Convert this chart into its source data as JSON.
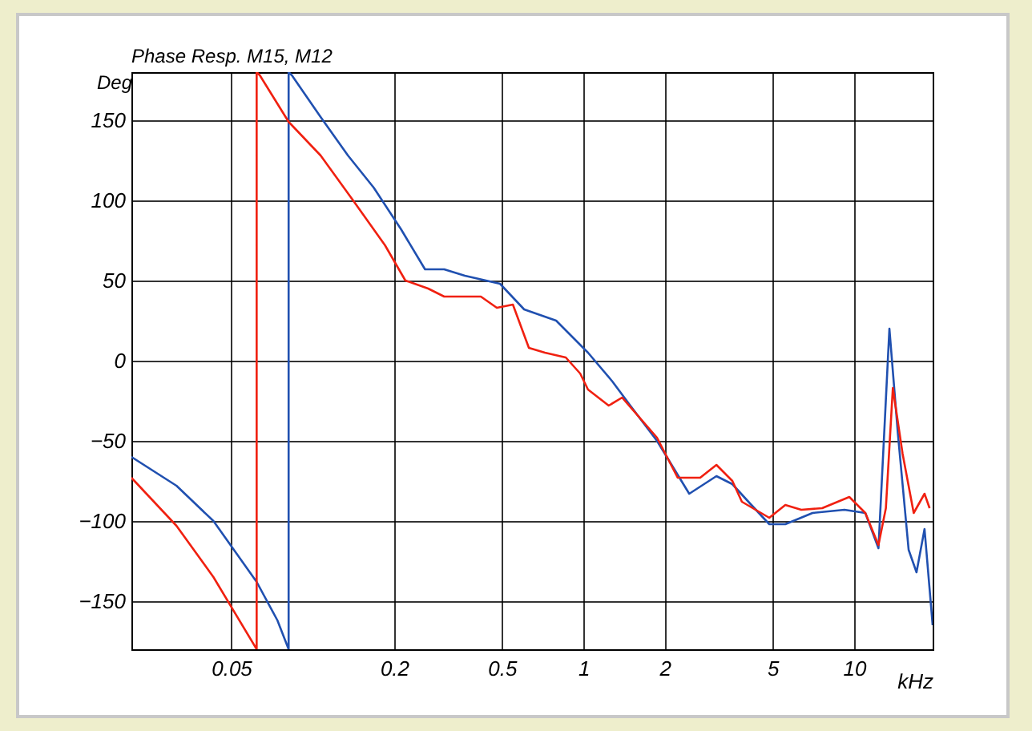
{
  "chart_data": {
    "type": "line",
    "title": "Phase Resp. M15, M12",
    "xlabel": "kHz",
    "ylabel": "Deg",
    "log": "x",
    "grid": true,
    "line_style": "solid",
    "marker": "none",
    "xlim": [
      0.0214,
      19.5
    ],
    "ylim": [
      -180,
      180
    ],
    "xticks": [
      0.05,
      0.2,
      0.5,
      1,
      2,
      5,
      10
    ],
    "yticks": [
      -150,
      -100,
      -50,
      0,
      50,
      100,
      150
    ],
    "series": [
      {
        "color": "#2050b0",
        "x": [
          0.0214,
          0.0314,
          0.043,
          0.0621,
          0.0741,
          0.0815,
          0.0815,
          0.0838,
          0.107,
          0.135,
          0.168,
          0.212,
          0.26,
          0.306,
          0.365,
          0.492,
          0.604,
          0.793,
          1.04,
          1.28,
          1.49,
          1.87,
          2.46,
          3.1,
          3.55,
          4.07,
          4.86,
          5.57,
          7.02,
          9.21,
          11.0,
          12.3,
          13.5,
          14.5,
          15.9,
          17.0,
          18.2,
          19.5
        ],
        "values": [
          -60,
          -78,
          -100,
          -138,
          -162,
          -180,
          180,
          178,
          152,
          128,
          108,
          82,
          57,
          57,
          53,
          48,
          32,
          25,
          5,
          -13,
          -28,
          -50,
          -83,
          -72,
          -77,
          -88,
          -102,
          -102,
          -95,
          -93,
          -95,
          -117,
          20,
          -45,
          -118,
          -132,
          -105,
          -165
        ]
      },
      {
        "color": "#f02010",
        "x": [
          0.0214,
          0.0314,
          0.043,
          0.0621,
          0.0621,
          0.0638,
          0.0815,
          0.107,
          0.141,
          0.185,
          0.22,
          0.267,
          0.306,
          0.418,
          0.479,
          0.549,
          0.629,
          0.721,
          0.861,
          0.973,
          1.04,
          1.24,
          1.39,
          1.87,
          2.23,
          2.7,
          3.1,
          3.55,
          3.85,
          4.86,
          5.57,
          6.38,
          7.62,
          9.6,
          11.0,
          12.3,
          13.1,
          13.9,
          15.1,
          16.6,
          18.2,
          19.0
        ],
        "values": [
          -73,
          -103,
          -135,
          -180,
          180,
          178,
          149,
          128,
          100,
          72,
          50,
          45,
          40,
          40,
          33,
          35,
          8,
          5,
          2,
          -8,
          -18,
          -28,
          -23,
          -48,
          -73,
          -73,
          -65,
          -75,
          -88,
          -98,
          -90,
          -93,
          -92,
          -85,
          -95,
          -115,
          -92,
          -17,
          -58,
          -95,
          -83,
          -92
        ]
      }
    ]
  }
}
